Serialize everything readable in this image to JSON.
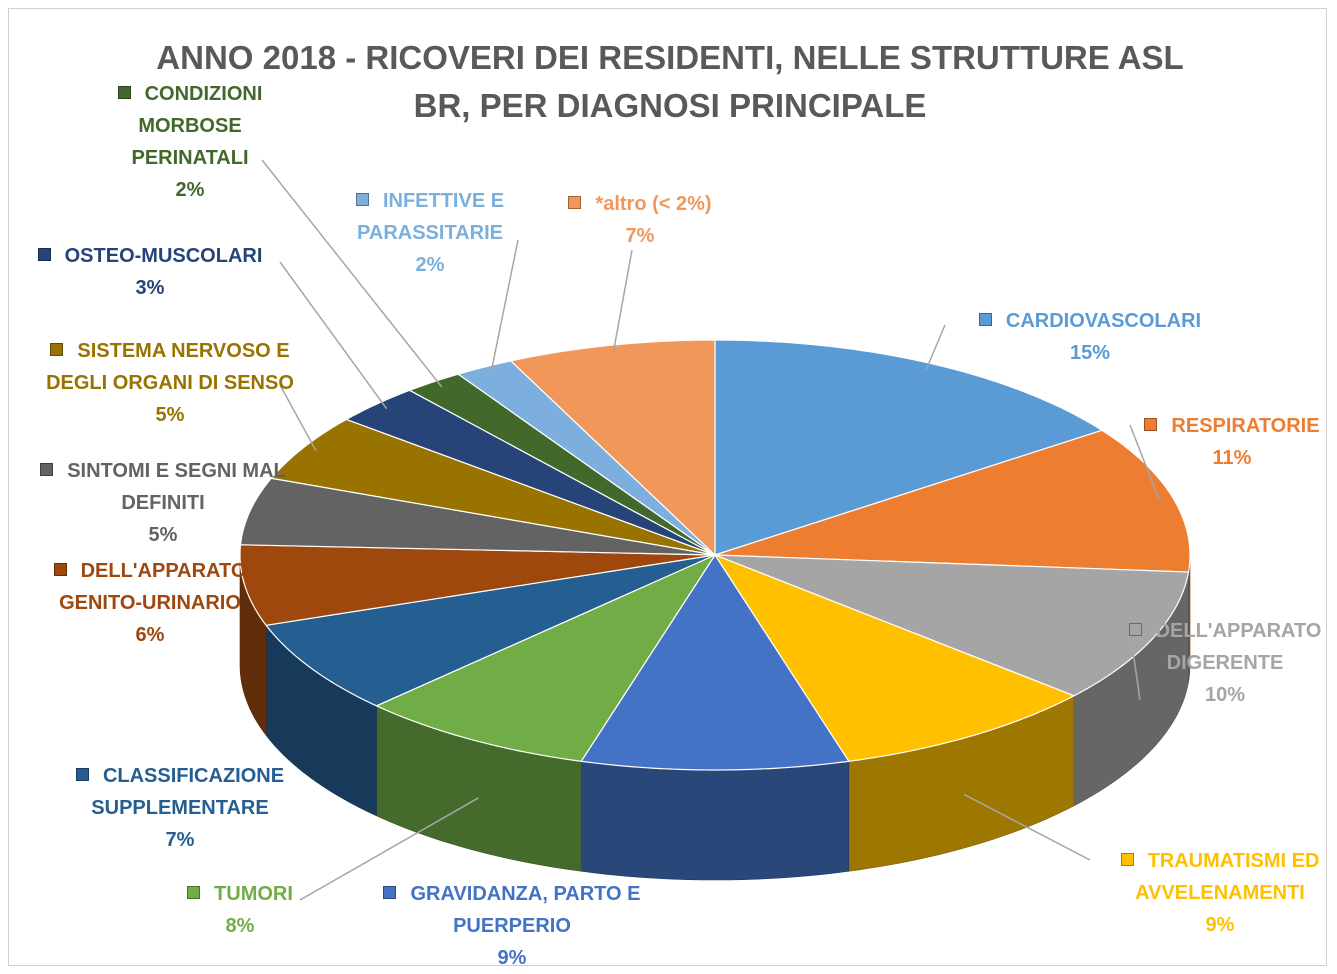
{
  "chart_data": {
    "type": "pie",
    "title": "ANNO 2018 - RICOVERI DEI RESIDENTI, NELLE STRUTTURE ASL BR, PER DIAGNOSI PRINCIPALE",
    "categories": [
      "CARDIOVASCOLARI",
      "RESPIRATORIE",
      "DELL'APPARATO DIGERENTE",
      "TRAUMATISMI ED AVVELENAMENTI",
      "GRAVIDANZA, PARTO E PUERPERIO",
      "TUMORI",
      "CLASSIFICAZIONE SUPPLEMENTARE",
      "DELL'APPARATO GENITO-URINARIO",
      "SINTOMI E SEGNI MAL DEFINITI",
      "SISTEMA NERVOSO E DEGLI ORGANI DI SENSO",
      "OSTEO-MUSCOLARI",
      "CONDIZIONI MORBOSE PERINATALI",
      "INFETTIVE E PARASSITARIE",
      "*altro (< 2%)"
    ],
    "values": [
      15,
      11,
      10,
      9,
      9,
      8,
      7,
      6,
      5,
      5,
      3,
      2,
      2,
      7
    ],
    "value_labels": [
      "15%",
      "11%",
      "10%",
      "9%",
      "9%",
      "8%",
      "7%",
      "6%",
      "5%",
      "5%",
      "3%",
      "2%",
      "2%",
      "7%"
    ],
    "colors": [
      "#5b9bd5",
      "#ed7d31",
      "#a5a5a5",
      "#ffc000",
      "#4472c4",
      "#70ad47",
      "#255e91",
      "#9e480e",
      "#636363",
      "#997300",
      "#264478",
      "#43682b",
      "#7cafdd",
      "#f1975a"
    ]
  }
}
